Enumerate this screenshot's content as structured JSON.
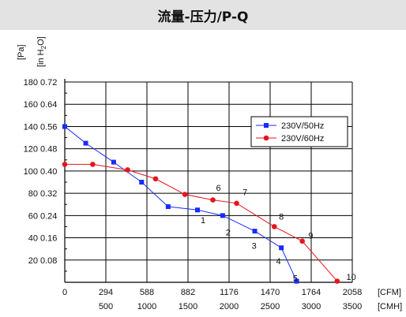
{
  "header": {
    "title": "流量-压力/P-Q"
  },
  "chart_data": {
    "type": "line",
    "y_units": [
      "[Pa]",
      "[in H2O]"
    ],
    "x_units": [
      "[CFM]",
      "[CMH]"
    ],
    "y_ticks_pa": [
      0,
      20,
      40,
      60,
      80,
      100,
      120,
      140,
      160,
      180
    ],
    "y_ticks_inh2o": [
      "",
      "0.08",
      "0.16",
      "0.24",
      "0.32",
      "0.40",
      "0.48",
      "0.56",
      "0.64",
      "0.72"
    ],
    "x_ticks_cfm": [
      0,
      294,
      588,
      882,
      1176,
      1470,
      1764,
      2058
    ],
    "x_ticks_cmh": [
      500,
      1000,
      1500,
      2000,
      2500,
      3000,
      3500
    ],
    "xlim_cfm": [
      0,
      2058
    ],
    "ylim_pa": [
      0,
      180
    ],
    "grid": true,
    "legend_position": "top-right",
    "series": [
      {
        "name": "230V/50Hz",
        "color": "#1a2bff",
        "marker": "square",
        "x": [
          0,
          150,
          350,
          550,
          740,
          950,
          1130,
          1360,
          1550,
          1660
        ],
        "y": [
          140,
          125,
          108,
          90,
          68,
          65,
          60,
          46,
          31,
          1
        ]
      },
      {
        "name": "230V/60Hz",
        "color": "#e8141b",
        "marker": "circle",
        "x": [
          0,
          200,
          450,
          650,
          860,
          1060,
          1230,
          1500,
          1700,
          1950
        ],
        "y": [
          106,
          106,
          101,
          93,
          79,
          74,
          71,
          50,
          37,
          1
        ]
      }
    ],
    "annotations": [
      {
        "text": "1",
        "x": 990,
        "y": 56
      },
      {
        "text": "2",
        "x": 1170,
        "y": 45
      },
      {
        "text": "3",
        "x": 1355,
        "y": 33
      },
      {
        "text": "4",
        "x": 1530,
        "y": 19
      },
      {
        "text": "5",
        "x": 1650,
        "y": 4
      },
      {
        "text": "6",
        "x": 1100,
        "y": 85
      },
      {
        "text": "7",
        "x": 1290,
        "y": 81
      },
      {
        "text": "8",
        "x": 1550,
        "y": 59
      },
      {
        "text": "9",
        "x": 1760,
        "y": 42
      },
      {
        "text": "10",
        "x": 2050,
        "y": 5
      }
    ]
  }
}
